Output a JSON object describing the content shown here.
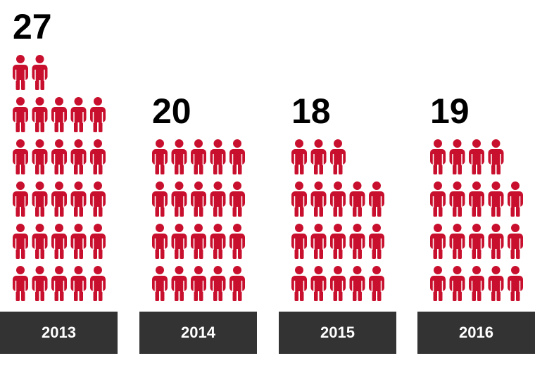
{
  "chart_data": {
    "type": "pictogram",
    "categories": [
      "2013",
      "2014",
      "2015",
      "2016"
    ],
    "values": [
      27,
      20,
      18,
      19
    ],
    "color": "#c8102e",
    "label_background": "#333333",
    "per_row": 5
  }
}
